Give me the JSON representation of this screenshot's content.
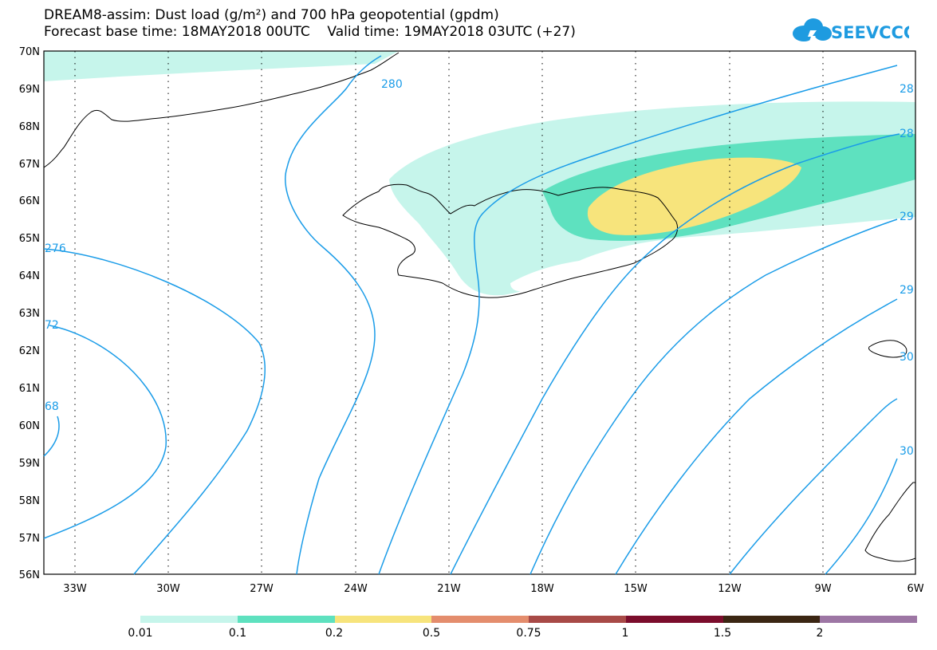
{
  "header": {
    "line1": "DREAM8-assim: Dust load (g/m²) and 700 hPa geopotential (gpdm)",
    "line2": "Forecast base time: 18MAY2018 00UTC    Valid time: 19MAY2018 03UTC (+27)"
  },
  "logo": {
    "text": "SEEVCCC",
    "color": "#1e9be0"
  },
  "map": {
    "lat_labels": [
      "70N",
      "69N",
      "68N",
      "67N",
      "66N",
      "65N",
      "64N",
      "63N",
      "62N",
      "61N",
      "60N",
      "59N",
      "58N",
      "57N",
      "56N"
    ],
    "lon_labels": [
      "33W",
      "30W",
      "27W",
      "24W",
      "21W",
      "18W",
      "15W",
      "12W",
      "9W",
      "6W"
    ],
    "contour_labels": [
      "280",
      "28",
      "28",
      "29",
      "29",
      "30",
      "30",
      "276",
      "72",
      "68"
    ],
    "contour_color": "#1a9ce8",
    "coast_color": "#000000"
  },
  "legend": {
    "colors": [
      "#c6f5eb",
      "#5ee1bf",
      "#f7e47c",
      "#e48d6d",
      "#a84a47",
      "#7b0d2c",
      "#3b2613",
      "#9d76a4"
    ],
    "labels": [
      "0.01",
      "0.1",
      "0.2",
      "0.5",
      "0.75",
      "1",
      "1.5",
      "2"
    ]
  }
}
